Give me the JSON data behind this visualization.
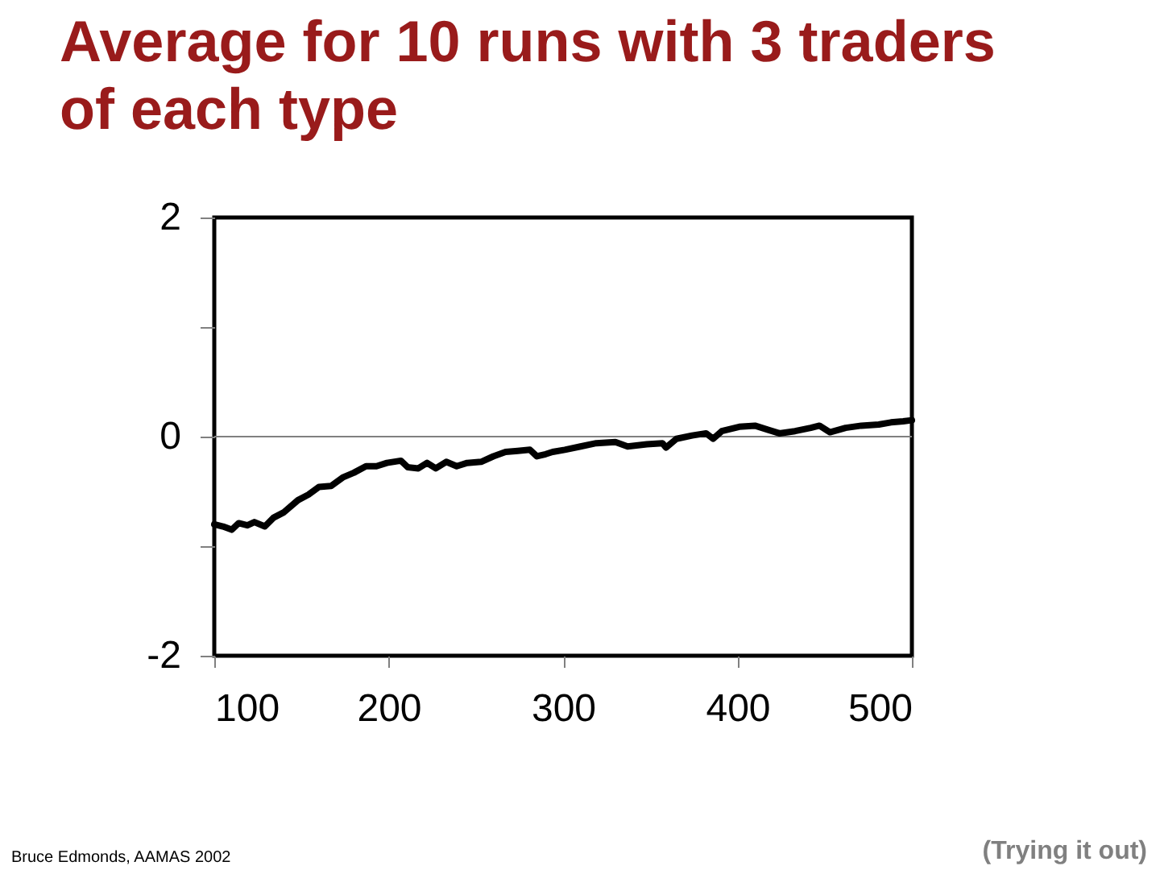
{
  "chart_data": {
    "type": "line",
    "title": "Average for 10 runs with 3 traders of each type",
    "x": [
      100,
      105,
      110,
      114,
      119,
      123,
      129,
      134,
      140,
      148,
      154,
      160,
      167,
      174,
      180,
      187,
      193,
      199,
      207,
      211,
      217,
      222,
      227,
      233,
      239,
      245,
      253,
      260,
      267,
      274,
      281,
      285,
      290,
      294,
      301,
      310,
      319,
      330,
      337,
      348,
      357,
      359,
      365,
      374,
      382,
      386,
      391,
      401,
      410,
      418,
      424,
      433,
      442,
      447,
      453,
      462,
      471,
      481,
      488,
      495,
      500
    ],
    "series": [
      {
        "color": "#000000",
        "values": [
          -0.8,
          -0.82,
          -0.85,
          -0.79,
          -0.81,
          -0.78,
          -0.82,
          -0.74,
          -0.69,
          -0.58,
          -0.53,
          -0.46,
          -0.45,
          -0.37,
          -0.33,
          -0.27,
          -0.27,
          -0.24,
          -0.22,
          -0.28,
          -0.29,
          -0.24,
          -0.29,
          -0.23,
          -0.27,
          -0.24,
          -0.23,
          -0.18,
          -0.14,
          -0.13,
          -0.12,
          -0.18,
          -0.16,
          -0.14,
          -0.12,
          -0.09,
          -0.06,
          -0.05,
          -0.09,
          -0.07,
          -0.06,
          -0.1,
          -0.02,
          0.01,
          0.03,
          -0.02,
          0.05,
          0.09,
          0.1,
          0.06,
          0.03,
          0.05,
          0.08,
          0.1,
          0.04,
          0.08,
          0.1,
          0.11,
          0.13,
          0.14,
          0.15
        ]
      }
    ],
    "line_style": "solid",
    "xlim": [
      100,
      500
    ],
    "ylim": [
      -2,
      2
    ],
    "xticks": [
      100,
      200,
      300,
      400,
      500
    ],
    "yticks": [
      -2,
      {
        "value": -1,
        "label": null
      },
      0,
      {
        "value": 1,
        "label": null
      },
      2
    ],
    "ref_lines": [
      {
        "axis": "y",
        "value": 0,
        "color": "#808080"
      }
    ],
    "annotations": [
      "Bruce Edmonds, AAMAS 2002",
      "(Trying it out)"
    ]
  }
}
